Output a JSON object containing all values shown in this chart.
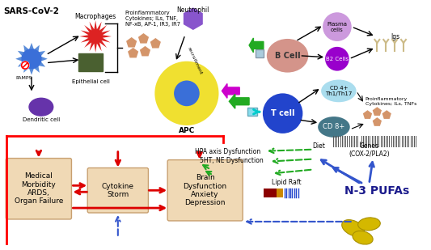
{
  "bg_color": "#ffffff",
  "sars_label": "SARS-CoV-2",
  "pamps_label": "PAMPS",
  "macrophages_label": "Macrophages",
  "epithelial_label": "Epithelial cell",
  "dendritic_label": "Dendritic cell",
  "neutrophil_label": "Neutrophil",
  "apc_label": "APC",
  "proinflam_text": "Proinflammatory\nCytokines; ILs, TNF,\nNF-xB, AP-1, IR3, IR7",
  "recruitment_label": "recruitment",
  "bcell_label": "B Cell",
  "tcell_label": "T cell",
  "plasma_label": "Plasma\ncells",
  "b2cells_label": "B2 Cells",
  "igs_label": "Igs",
  "cd4_label": "CD 4+\nTh1/Th17",
  "cd8_label": "CD 8+",
  "proinflam2_text": "Proinflammatory\nCytokines; ILs, TNFs",
  "medical_label": "Medical\nMorbidity\nARDS,\nOrgan Failure",
  "cytokine_label": "Cytokine\nStorm",
  "brain_label": "Brain\nDysfunction\nAnxiety\nDepression",
  "hpa_label": "HPA axis Dysfunction",
  "sht_label": "5HT, NE Dysfunction",
  "lipid_label": "Lipid Raft",
  "diet_label": "Diet",
  "genes_label": "Genes\n(COX-2/PLA2)",
  "n3_label": "N-3 PUFAs",
  "box_fill": "#f0d9b5",
  "box_edge": "#c8a070",
  "virus_blue": "#5b8dd9",
  "virus_dark": "#3a6fd8",
  "macro_red": "#dd2222",
  "epithelial_green": "#4a6030",
  "dendritic_purple": "#6633aa",
  "neutrophil_purple": "#8855cc",
  "apc_yellow": "#f0e030",
  "apc_blue_inner": "#3a6fd8",
  "magenta_hex": "#cc00cc",
  "green_arrow": "#22aa22",
  "bcell_color": "#d4948a",
  "plasma_color": "#cc99dd",
  "b2cell_color": "#9900cc",
  "tcell_color": "#2244cc",
  "cd4_color": "#aaddee",
  "cd8_color": "#447788",
  "penta_color": "#d4956a",
  "red_arrow": "#dd0000",
  "blue_arrow": "#3355cc",
  "n3_color": "#1a1a8c",
  "capsule_color": "#d4b800",
  "capsule_edge": "#a89000",
  "lipid_dark": "#8B0000",
  "lipid_orange": "#cc8800"
}
